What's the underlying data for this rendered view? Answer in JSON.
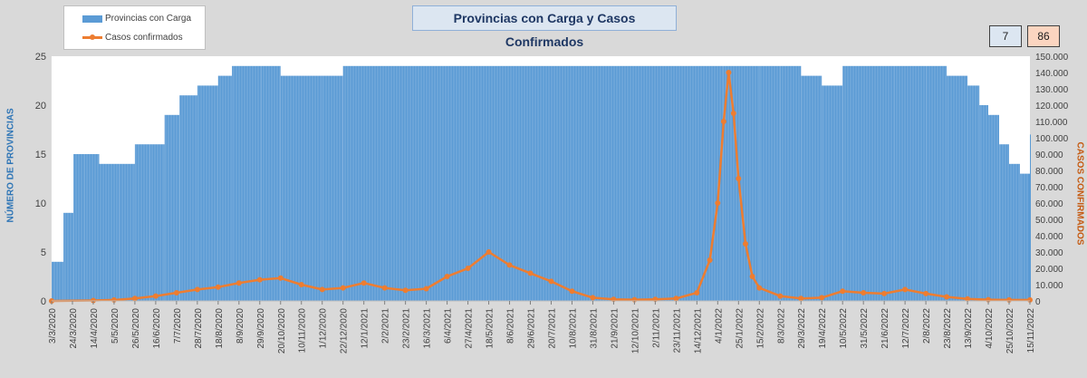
{
  "chart_data": {
    "type": "bar+line",
    "title": "Provincias con Carga y Casos Confirmados",
    "ylabel_left": "NÚMERO DE PROVINCIAS",
    "ylabel_right": "CASOS CONFIRMADOS",
    "ylim_left": [
      0,
      25
    ],
    "ylim_right": [
      0,
      150000
    ],
    "yticks_left": [
      "0",
      "5",
      "10",
      "15",
      "20",
      "25"
    ],
    "yticks_right": [
      "0",
      "10.000",
      "20.000",
      "30.000",
      "40.000",
      "50.000",
      "60.000",
      "70.000",
      "80.000",
      "90.000",
      "100.000",
      "110.000",
      "120.000",
      "130.000",
      "140.000",
      "150.000"
    ],
    "x_start": "2020-03-03",
    "x_end": "2022-11-15",
    "xticks": [
      "3/3/2020",
      "24/3/2020",
      "14/4/2020",
      "5/5/2020",
      "26/5/2020",
      "16/6/2020",
      "7/7/2020",
      "28/7/2020",
      "18/8/2020",
      "8/9/2020",
      "29/9/2020",
      "20/10/2020",
      "10/11/2020",
      "1/12/2020",
      "22/12/2020",
      "12/1/2021",
      "2/2/2021",
      "23/2/2021",
      "16/3/2021",
      "6/4/2021",
      "27/4/2021",
      "18/5/2021",
      "8/6/2021",
      "29/6/2021",
      "20/7/2021",
      "10/8/2021",
      "31/8/2021",
      "21/9/2021",
      "12/10/2021",
      "2/11/2021",
      "23/11/2021",
      "14/12/2021",
      "4/1/2022",
      "25/1/2022",
      "15/2/2022",
      "8/3/2022",
      "29/3/2022",
      "19/4/2022",
      "10/5/2022",
      "31/5/2022",
      "21/6/2022",
      "12/7/2022",
      "2/8/2022",
      "23/8/2022",
      "13/9/2022",
      "4/10/2022",
      "25/10/2022",
      "15/11/2022"
    ],
    "series": [
      {
        "name": "Provincias con Carga",
        "kind": "bar",
        "color": "#5b9bd5",
        "axis": "left",
        "points": [
          [
            "2020-03-03",
            4
          ],
          [
            "2020-03-15",
            9
          ],
          [
            "2020-03-25",
            15
          ],
          [
            "2020-04-05",
            15
          ],
          [
            "2020-04-20",
            14
          ],
          [
            "2020-05-10",
            14
          ],
          [
            "2020-05-26",
            16
          ],
          [
            "2020-06-10",
            16
          ],
          [
            "2020-06-25",
            19
          ],
          [
            "2020-07-10",
            21
          ],
          [
            "2020-07-28",
            22
          ],
          [
            "2020-08-18",
            23
          ],
          [
            "2020-09-01",
            24
          ],
          [
            "2020-10-01",
            24
          ],
          [
            "2020-10-20",
            23
          ],
          [
            "2020-12-01",
            23
          ],
          [
            "2020-12-22",
            24
          ],
          [
            "2022-01-10",
            24
          ],
          [
            "2022-02-15",
            24
          ],
          [
            "2022-03-08",
            24
          ],
          [
            "2022-03-29",
            23
          ],
          [
            "2022-04-19",
            22
          ],
          [
            "2022-05-10",
            24
          ],
          [
            "2022-07-01",
            24
          ],
          [
            "2022-08-02",
            24
          ],
          [
            "2022-08-23",
            23
          ],
          [
            "2022-09-13",
            22
          ],
          [
            "2022-09-25",
            20
          ],
          [
            "2022-10-04",
            19
          ],
          [
            "2022-10-15",
            16
          ],
          [
            "2022-10-25",
            14
          ],
          [
            "2022-11-05",
            13
          ],
          [
            "2022-11-15",
            17
          ]
        ]
      },
      {
        "name": "Casos confirmados",
        "kind": "line",
        "color": "#ed7d31",
        "axis": "right",
        "points": [
          [
            "2020-03-03",
            0
          ],
          [
            "2020-04-14",
            300
          ],
          [
            "2020-05-05",
            600
          ],
          [
            "2020-05-26",
            1500
          ],
          [
            "2020-06-16",
            3000
          ],
          [
            "2020-07-07",
            5000
          ],
          [
            "2020-07-28",
            7000
          ],
          [
            "2020-08-18",
            8500
          ],
          [
            "2020-09-08",
            11000
          ],
          [
            "2020-09-29",
            13000
          ],
          [
            "2020-10-20",
            14000
          ],
          [
            "2020-11-10",
            10000
          ],
          [
            "2020-12-01",
            7000
          ],
          [
            "2020-12-22",
            8000
          ],
          [
            "2021-01-12",
            11000
          ],
          [
            "2021-02-02",
            8000
          ],
          [
            "2021-02-23",
            6500
          ],
          [
            "2021-03-16",
            7500
          ],
          [
            "2021-04-06",
            15000
          ],
          [
            "2021-04-27",
            20000
          ],
          [
            "2021-05-18",
            30000
          ],
          [
            "2021-06-08",
            22000
          ],
          [
            "2021-06-29",
            17000
          ],
          [
            "2021-07-20",
            12000
          ],
          [
            "2021-08-10",
            6000
          ],
          [
            "2021-08-31",
            2000
          ],
          [
            "2021-09-21",
            1000
          ],
          [
            "2021-10-12",
            800
          ],
          [
            "2021-11-02",
            1000
          ],
          [
            "2021-11-23",
            1500
          ],
          [
            "2021-12-14",
            5000
          ],
          [
            "2021-12-27",
            25000
          ],
          [
            "2022-01-04",
            60000
          ],
          [
            "2022-01-10",
            110000
          ],
          [
            "2022-01-15",
            140000
          ],
          [
            "2022-01-20",
            115000
          ],
          [
            "2022-01-25",
            75000
          ],
          [
            "2022-02-01",
            35000
          ],
          [
            "2022-02-08",
            15000
          ],
          [
            "2022-02-15",
            8000
          ],
          [
            "2022-03-08",
            3000
          ],
          [
            "2022-03-29",
            1500
          ],
          [
            "2022-04-19",
            2000
          ],
          [
            "2022-05-10",
            6000
          ],
          [
            "2022-05-31",
            5000
          ],
          [
            "2022-06-21",
            4500
          ],
          [
            "2022-07-12",
            7000
          ],
          [
            "2022-08-02",
            4500
          ],
          [
            "2022-08-23",
            2500
          ],
          [
            "2022-09-13",
            1200
          ],
          [
            "2022-10-04",
            800
          ],
          [
            "2022-10-25",
            600
          ],
          [
            "2022-11-15",
            600
          ]
        ]
      }
    ],
    "legend": "top-left",
    "grid": false
  },
  "indicators": {
    "provincias_hoy": "7",
    "casos_hoy": "86"
  },
  "colors": {
    "background": "#d9d9d9",
    "plot_background": "#ffffff",
    "bars": "#5b9bd5",
    "line": "#ed7d31",
    "left_label": "#2e75b6",
    "right_label": "#c55a11",
    "count_box_left": "#dce6f1",
    "count_box_right": "#fbd5c0"
  }
}
